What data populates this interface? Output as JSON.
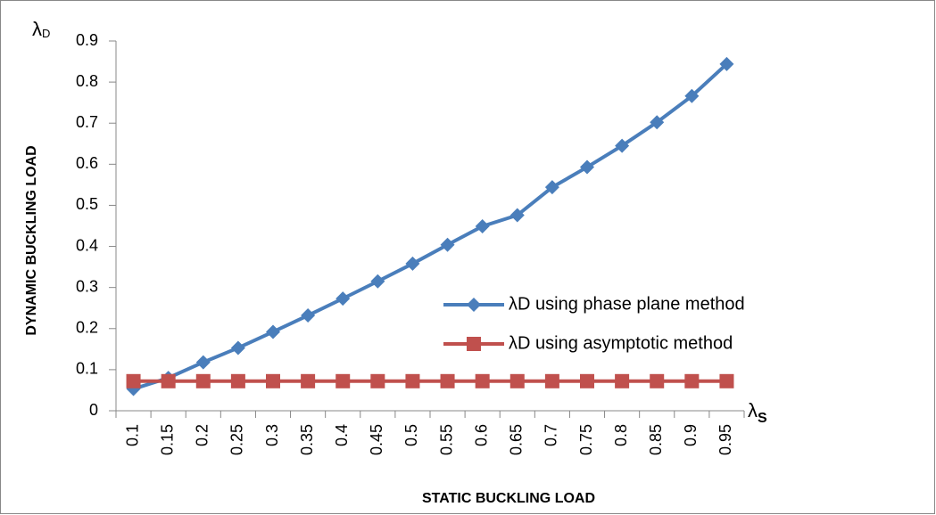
{
  "chart_data": {
    "type": "line",
    "x_label": "STATIC BUCKLING LOAD",
    "y_label": "DYNAMIC BUCKLING LOAD",
    "annotations": [
      {
        "text": "λ",
        "sub": "D"
      },
      {
        "text": "λ",
        "sub": "S"
      }
    ],
    "categories": [
      "0.1",
      "0.15",
      "0.2",
      "0.25",
      "0.3",
      "0.35",
      "0.4",
      "0.45",
      "0.5",
      "0.55",
      "0.6",
      "0.65",
      "0.7",
      "0.75",
      "0.8",
      "0.85",
      "0.9",
      "0.95"
    ],
    "series": [
      {
        "name": "λD  using phase plane method",
        "color": "#4a7ebb",
        "marker": "diamond",
        "values": [
          0.053,
          0.08,
          0.118,
          0.153,
          0.192,
          0.232,
          0.273,
          0.315,
          0.358,
          0.404,
          0.449,
          0.476,
          0.544,
          0.593,
          0.645,
          0.702,
          0.766,
          0.844
        ]
      },
      {
        "name": "λD  using asymptotic method",
        "color": "#c0504d",
        "marker": "square",
        "values": [
          0.072,
          0.072,
          0.072,
          0.072,
          0.072,
          0.072,
          0.072,
          0.072,
          0.072,
          0.072,
          0.072,
          0.072,
          0.072,
          0.072,
          0.072,
          0.072,
          0.072,
          0.072
        ]
      }
    ],
    "ylim": [
      0,
      0.9
    ],
    "yticks": [
      0,
      0.1,
      0.2,
      0.3,
      0.4,
      0.5,
      0.6,
      0.7,
      0.8,
      0.9
    ],
    "grid": false,
    "legend": "right"
  }
}
